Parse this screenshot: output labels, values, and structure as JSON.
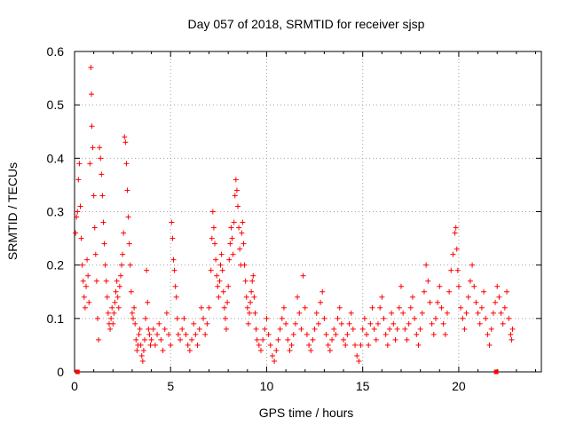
{
  "chart_data": {
    "type": "scatter",
    "title": "Day 057 of 2018, SRMTID for receiver sjsp",
    "xlabel": "GPS time / hours",
    "ylabel": "SRMTID / TECUs",
    "xlim": [
      0,
      24.3
    ],
    "ylim": [
      0,
      0.6
    ],
    "xticks": [
      "0",
      "5",
      "10",
      "15",
      "20"
    ],
    "yticks": [
      "0",
      "0.1",
      "0.2",
      "0.3",
      "0.4",
      "0.5",
      "0.6"
    ],
    "xtick_values": [
      0,
      5,
      10,
      15,
      20
    ],
    "ytick_values": [
      0,
      0.1,
      0.2,
      0.3,
      0.4,
      0.5,
      0.6
    ],
    "grid": true,
    "marker": "+",
    "color": "#ff0000",
    "series": [
      {
        "name": "SRMTID",
        "points": [
          [
            0.05,
            0.26
          ],
          [
            0.1,
            0.29
          ],
          [
            0.15,
            0.3
          ],
          [
            0.2,
            0.36
          ],
          [
            0.25,
            0.39
          ],
          [
            0.3,
            0.31
          ],
          [
            0.35,
            0.25
          ],
          [
            0.4,
            0.2
          ],
          [
            0.45,
            0.17
          ],
          [
            0.5,
            0.14
          ],
          [
            0.55,
            0.12
          ],
          [
            0.6,
            0.16
          ],
          [
            0.65,
            0.21
          ],
          [
            0.7,
            0.18
          ],
          [
            0.75,
            0.13
          ],
          [
            0.8,
            0.39
          ],
          [
            0.85,
            0.57
          ],
          [
            0.88,
            0.52
          ],
          [
            0.9,
            0.46
          ],
          [
            0.95,
            0.42
          ],
          [
            1.0,
            0.33
          ],
          [
            1.05,
            0.27
          ],
          [
            1.1,
            0.22
          ],
          [
            1.15,
            0.17
          ],
          [
            1.2,
            0.1
          ],
          [
            1.25,
            0.06
          ],
          [
            1.3,
            0.42
          ],
          [
            1.35,
            0.4
          ],
          [
            1.4,
            0.37
          ],
          [
            1.45,
            0.33
          ],
          [
            1.5,
            0.28
          ],
          [
            1.55,
            0.24
          ],
          [
            1.6,
            0.2
          ],
          [
            1.65,
            0.17
          ],
          [
            1.7,
            0.14
          ],
          [
            1.75,
            0.11
          ],
          [
            1.8,
            0.09
          ],
          [
            1.85,
            0.08
          ],
          [
            1.9,
            0.1
          ],
          [
            1.95,
            0.12
          ],
          [
            2.0,
            0.09
          ],
          [
            2.05,
            0.11
          ],
          [
            2.1,
            0.13
          ],
          [
            2.15,
            0.15
          ],
          [
            2.2,
            0.17
          ],
          [
            2.25,
            0.14
          ],
          [
            2.3,
            0.12
          ],
          [
            2.35,
            0.16
          ],
          [
            2.4,
            0.18
          ],
          [
            2.45,
            0.2
          ],
          [
            2.5,
            0.22
          ],
          [
            2.55,
            0.26
          ],
          [
            2.6,
            0.44
          ],
          [
            2.65,
            0.43
          ],
          [
            2.7,
            0.39
          ],
          [
            2.75,
            0.34
          ],
          [
            2.8,
            0.29
          ],
          [
            2.85,
            0.24
          ],
          [
            2.9,
            0.2
          ],
          [
            2.95,
            0.15
          ],
          [
            3.0,
            0.11
          ],
          [
            3.05,
            0.1
          ],
          [
            3.1,
            0.12
          ],
          [
            3.15,
            0.09
          ],
          [
            3.2,
            0.06
          ],
          [
            3.25,
            0.04
          ],
          [
            3.3,
            0.05
          ],
          [
            3.35,
            0.07
          ],
          [
            3.4,
            0.08
          ],
          [
            3.45,
            0.05
          ],
          [
            3.5,
            0.03
          ],
          [
            3.55,
            0.02
          ],
          [
            3.6,
            0.04
          ],
          [
            3.65,
            0.06
          ],
          [
            3.7,
            0.1
          ],
          [
            3.75,
            0.19
          ],
          [
            3.8,
            0.13
          ],
          [
            3.85,
            0.08
          ],
          [
            3.9,
            0.07
          ],
          [
            3.95,
            0.05
          ],
          [
            4.0,
            0.06
          ],
          [
            4.1,
            0.08
          ],
          [
            4.2,
            0.05
          ],
          [
            4.3,
            0.07
          ],
          [
            4.4,
            0.09
          ],
          [
            4.5,
            0.06
          ],
          [
            4.6,
            0.04
          ],
          [
            4.7,
            0.08
          ],
          [
            4.8,
            0.11
          ],
          [
            4.9,
            0.07
          ],
          [
            5.0,
            0.05
          ],
          [
            5.05,
            0.28
          ],
          [
            5.1,
            0.25
          ],
          [
            5.15,
            0.21
          ],
          [
            5.2,
            0.19
          ],
          [
            5.25,
            0.16
          ],
          [
            5.3,
            0.14
          ],
          [
            5.35,
            0.1
          ],
          [
            5.4,
            0.07
          ],
          [
            5.5,
            0.06
          ],
          [
            5.6,
            0.08
          ],
          [
            5.7,
            0.1
          ],
          [
            5.8,
            0.07
          ],
          [
            5.9,
            0.05
          ],
          [
            6.0,
            0.04
          ],
          [
            6.1,
            0.06
          ],
          [
            6.2,
            0.09
          ],
          [
            6.3,
            0.07
          ],
          [
            6.4,
            0.05
          ],
          [
            6.5,
            0.08
          ],
          [
            6.6,
            0.12
          ],
          [
            6.7,
            0.1
          ],
          [
            6.8,
            0.07
          ],
          [
            6.9,
            0.09
          ],
          [
            7.0,
            0.12
          ],
          [
            7.1,
            0.19
          ],
          [
            7.15,
            0.25
          ],
          [
            7.2,
            0.3
          ],
          [
            7.25,
            0.27
          ],
          [
            7.3,
            0.24
          ],
          [
            7.35,
            0.21
          ],
          [
            7.4,
            0.18
          ],
          [
            7.45,
            0.16
          ],
          [
            7.5,
            0.14
          ],
          [
            7.55,
            0.17
          ],
          [
            7.6,
            0.2
          ],
          [
            7.65,
            0.22
          ],
          [
            7.7,
            0.19
          ],
          [
            7.75,
            0.15
          ],
          [
            7.8,
            0.12
          ],
          [
            7.85,
            0.1
          ],
          [
            7.9,
            0.08
          ],
          [
            7.95,
            0.13
          ],
          [
            8.0,
            0.16
          ],
          [
            8.05,
            0.21
          ],
          [
            8.1,
            0.24
          ],
          [
            8.15,
            0.27
          ],
          [
            8.2,
            0.25
          ],
          [
            8.25,
            0.22
          ],
          [
            8.3,
            0.28
          ],
          [
            8.35,
            0.33
          ],
          [
            8.4,
            0.36
          ],
          [
            8.45,
            0.34
          ],
          [
            8.5,
            0.31
          ],
          [
            8.55,
            0.27
          ],
          [
            8.6,
            0.23
          ],
          [
            8.65,
            0.2
          ],
          [
            8.7,
            0.26
          ],
          [
            8.75,
            0.28
          ],
          [
            8.8,
            0.24
          ],
          [
            8.85,
            0.2
          ],
          [
            8.9,
            0.17
          ],
          [
            8.95,
            0.14
          ],
          [
            9.0,
            0.12
          ],
          [
            9.05,
            0.09
          ],
          [
            9.1,
            0.11
          ],
          [
            9.15,
            0.13
          ],
          [
            9.2,
            0.15
          ],
          [
            9.25,
            0.17
          ],
          [
            9.3,
            0.18
          ],
          [
            9.35,
            0.14
          ],
          [
            9.4,
            0.11
          ],
          [
            9.45,
            0.08
          ],
          [
            9.5,
            0.06
          ],
          [
            9.6,
            0.05
          ],
          [
            9.7,
            0.04
          ],
          [
            9.8,
            0.06
          ],
          [
            9.9,
            0.08
          ],
          [
            10.0,
            0.1
          ],
          [
            10.1,
            0.07
          ],
          [
            10.2,
            0.05
          ],
          [
            10.3,
            0.03
          ],
          [
            10.4,
            0.02
          ],
          [
            10.5,
            0.04
          ],
          [
            10.6,
            0.06
          ],
          [
            10.7,
            0.08
          ],
          [
            10.8,
            0.1
          ],
          [
            10.9,
            0.12
          ],
          [
            11.0,
            0.09
          ],
          [
            11.1,
            0.06
          ],
          [
            11.2,
            0.04
          ],
          [
            11.3,
            0.05
          ],
          [
            11.4,
            0.07
          ],
          [
            11.5,
            0.09
          ],
          [
            11.6,
            0.14
          ],
          [
            11.7,
            0.11
          ],
          [
            11.8,
            0.08
          ],
          [
            11.9,
            0.18
          ],
          [
            12.0,
            0.12
          ],
          [
            12.1,
            0.07
          ],
          [
            12.2,
            0.05
          ],
          [
            12.3,
            0.04
          ],
          [
            12.4,
            0.06
          ],
          [
            12.5,
            0.08
          ],
          [
            12.6,
            0.11
          ],
          [
            12.7,
            0.09
          ],
          [
            12.8,
            0.13
          ],
          [
            12.9,
            0.15
          ],
          [
            13.0,
            0.1
          ],
          [
            13.1,
            0.07
          ],
          [
            13.2,
            0.05
          ],
          [
            13.3,
            0.04
          ],
          [
            13.4,
            0.06
          ],
          [
            13.5,
            0.08
          ],
          [
            13.6,
            0.07
          ],
          [
            13.7,
            0.1
          ],
          [
            13.8,
            0.12
          ],
          [
            13.9,
            0.09
          ],
          [
            14.0,
            0.06
          ],
          [
            14.1,
            0.05
          ],
          [
            14.2,
            0.07
          ],
          [
            14.3,
            0.09
          ],
          [
            14.4,
            0.11
          ],
          [
            14.5,
            0.08
          ],
          [
            14.6,
            0.05
          ],
          [
            14.7,
            0.03
          ],
          [
            14.8,
            0.02
          ],
          [
            14.9,
            0.05
          ],
          [
            15.0,
            0.08
          ],
          [
            15.1,
            0.1
          ],
          [
            15.2,
            0.07
          ],
          [
            15.3,
            0.05
          ],
          [
            15.4,
            0.09
          ],
          [
            15.5,
            0.12
          ],
          [
            15.6,
            0.08
          ],
          [
            15.7,
            0.06
          ],
          [
            15.8,
            0.09
          ],
          [
            15.9,
            0.12
          ],
          [
            16.0,
            0.14
          ],
          [
            16.1,
            0.1
          ],
          [
            16.2,
            0.07
          ],
          [
            16.3,
            0.05
          ],
          [
            16.4,
            0.08
          ],
          [
            16.5,
            0.11
          ],
          [
            16.6,
            0.09
          ],
          [
            16.7,
            0.06
          ],
          [
            16.8,
            0.08
          ],
          [
            16.9,
            0.12
          ],
          [
            17.0,
            0.16
          ],
          [
            17.1,
            0.11
          ],
          [
            17.2,
            0.08
          ],
          [
            17.3,
            0.06
          ],
          [
            17.4,
            0.09
          ],
          [
            17.5,
            0.12
          ],
          [
            17.6,
            0.14
          ],
          [
            17.7,
            0.1
          ],
          [
            17.8,
            0.07
          ],
          [
            17.9,
            0.05
          ],
          [
            18.0,
            0.08
          ],
          [
            18.1,
            0.11
          ],
          [
            18.2,
            0.15
          ],
          [
            18.3,
            0.2
          ],
          [
            18.4,
            0.17
          ],
          [
            18.5,
            0.13
          ],
          [
            18.6,
            0.09
          ],
          [
            18.7,
            0.07
          ],
          [
            18.8,
            0.1
          ],
          [
            18.9,
            0.13
          ],
          [
            19.0,
            0.16
          ],
          [
            19.1,
            0.12
          ],
          [
            19.2,
            0.09
          ],
          [
            19.3,
            0.07
          ],
          [
            19.4,
            0.11
          ],
          [
            19.5,
            0.15
          ],
          [
            19.6,
            0.19
          ],
          [
            19.7,
            0.22
          ],
          [
            19.8,
            0.26
          ],
          [
            19.85,
            0.27
          ],
          [
            19.9,
            0.23
          ],
          [
            19.95,
            0.19
          ],
          [
            20.0,
            0.16
          ],
          [
            20.1,
            0.12
          ],
          [
            20.2,
            0.1
          ],
          [
            20.3,
            0.08
          ],
          [
            20.4,
            0.11
          ],
          [
            20.5,
            0.14
          ],
          [
            20.6,
            0.17
          ],
          [
            20.7,
            0.2
          ],
          [
            20.8,
            0.16
          ],
          [
            20.9,
            0.13
          ],
          [
            21.0,
            0.11
          ],
          [
            21.1,
            0.09
          ],
          [
            21.2,
            0.12
          ],
          [
            21.3,
            0.15
          ],
          [
            21.4,
            0.1
          ],
          [
            21.5,
            0.07
          ],
          [
            21.6,
            0.05
          ],
          [
            21.7,
            0.08
          ],
          [
            21.8,
            0.11
          ],
          [
            21.9,
            0.13
          ],
          [
            22.0,
            0.16
          ],
          [
            22.1,
            0.14
          ],
          [
            22.2,
            0.11
          ],
          [
            22.3,
            0.09
          ],
          [
            22.4,
            0.12
          ],
          [
            22.5,
            0.15
          ],
          [
            22.6,
            0.1
          ],
          [
            22.7,
            0.07
          ],
          [
            22.75,
            0.06
          ],
          [
            22.8,
            0.08
          ]
        ]
      },
      {
        "name": "zero-level markers",
        "points": [
          [
            0.15,
            0.0
          ],
          [
            21.95,
            0.0
          ]
        ]
      }
    ]
  }
}
